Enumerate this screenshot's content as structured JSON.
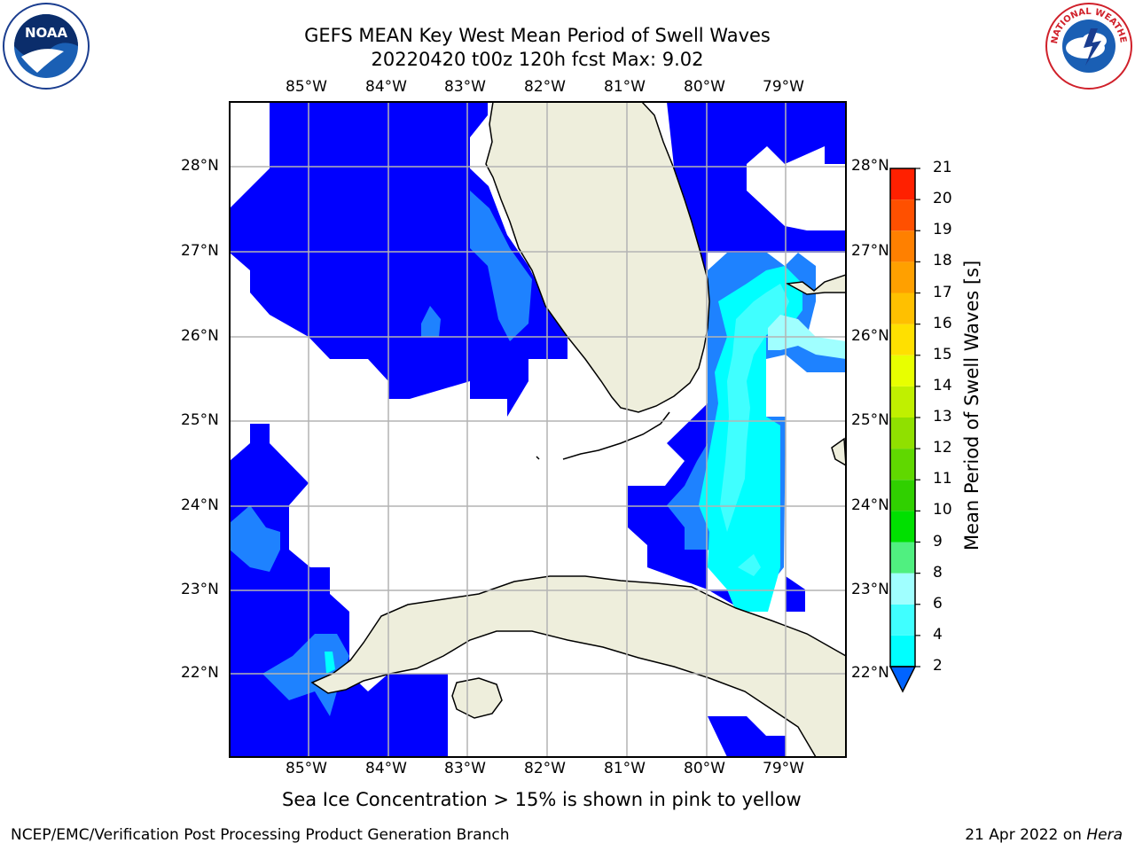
{
  "title": {
    "line1": "GEFS MEAN Key West Mean Period of Swell Waves",
    "line2": "20220420 t00z 120h fcst   Max: 9.02"
  },
  "logos": {
    "left": {
      "name": "noaa-logo",
      "text": "NOAA",
      "ring_text": "NATIONAL OCEANIC AND ATMOSPHERIC ADMINISTRATION · U.S. DEPARTMENT OF COMMERCE"
    },
    "right": {
      "name": "nws-logo",
      "ring_text": "NATIONAL WEATHER SERVICE"
    }
  },
  "map": {
    "lon_labels": [
      "85°W",
      "84°W",
      "83°W",
      "82°W",
      "81°W",
      "80°W",
      "79°W"
    ],
    "lat_labels": [
      "28°N",
      "27°N",
      "26°N",
      "25°N",
      "24°N",
      "23°N",
      "22°N"
    ],
    "extent": {
      "lon_min": -86.0,
      "lon_max": -78.25,
      "lat_min": 21.0,
      "lat_max": 28.75
    },
    "colors": {
      "land": "#eeeedc",
      "swell_2_4": "#0000ff",
      "swell_4_6": "#1e82ff",
      "swell_6_7": "#00ffff",
      "swell_7_8": "#40ffff",
      "swell_8_9": "#a0ffff",
      "grid": "#b4b4b4"
    }
  },
  "colorbar": {
    "label": "Mean Period of Swell Waves [s]",
    "ticks": [
      "2",
      "4",
      "6",
      "8",
      "9",
      "10",
      "11",
      "12",
      "13",
      "14",
      "15",
      "16",
      "17",
      "18",
      "19",
      "20",
      "21"
    ],
    "colors": [
      "#0064ff",
      "#00ffff",
      "#40ffff",
      "#a0ffff",
      "#50f080",
      "#00e000",
      "#30d000",
      "#60d800",
      "#90e000",
      "#c0f000",
      "#e8ff00",
      "#ffe000",
      "#ffc000",
      "#ffa000",
      "#ff8000",
      "#ff5000",
      "#ff2000",
      "#ff0000"
    ]
  },
  "subnote": "Sea Ice Concentration > 15% is shown in pink to yellow",
  "footer": {
    "left": "NCEP/EMC/Verification Post Processing Product Generation Branch",
    "right_prefix": "21 Apr 2022 on ",
    "right_host": "Hera"
  }
}
